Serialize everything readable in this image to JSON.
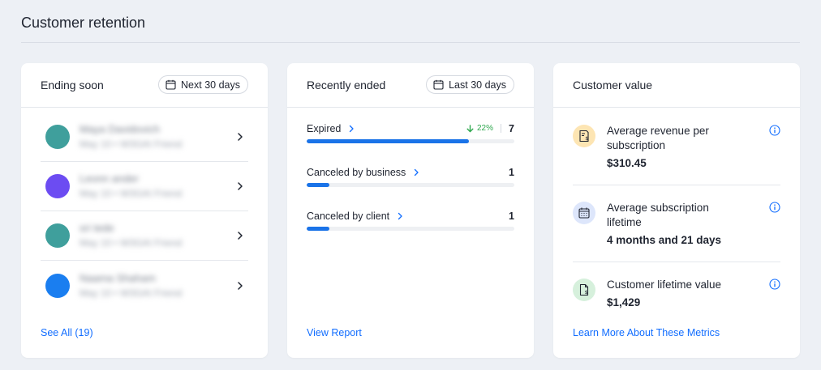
{
  "page": {
    "title": "Customer retention"
  },
  "ending_soon": {
    "title": "Ending soon",
    "date_range": "Next 30 days",
    "items": [
      {
        "name": "Maya Davidovich",
        "detail": "May 10 • W3GAI Friend",
        "avatar_color": "#3f9f9c"
      },
      {
        "name": "Leonn ander",
        "detail": "May 10 • W3GAI Friend",
        "avatar_color": "#6c4cf2"
      },
      {
        "name": "sri tede",
        "detail": "May 10 • W3GAI Friend",
        "avatar_color": "#3f9f9c"
      },
      {
        "name": "Naama Shaham",
        "detail": "May 10 • W3GAI Friend",
        "avatar_color": "#1a7ef0"
      }
    ],
    "link": "See All (19)"
  },
  "recently_ended": {
    "title": "Recently ended",
    "date_range": "Last 30 days",
    "metrics": [
      {
        "label": "Expired",
        "count": "7",
        "change": "22%",
        "progress": 0.78
      },
      {
        "label": "Canceled by business",
        "count": "1",
        "change": "",
        "progress": 0.11
      },
      {
        "label": "Canceled by client",
        "count": "1",
        "change": "",
        "progress": 0.11
      }
    ],
    "link": "View Report"
  },
  "customer_value": {
    "title": "Customer value",
    "items": [
      {
        "label": "Average revenue per subscription",
        "value": "$310.45",
        "icon": "receipt-dollar-icon",
        "icon_bg": "#fde5b3"
      },
      {
        "label": "Average subscription lifetime",
        "value": "4 months and 21 days",
        "icon": "calendar-icon",
        "icon_bg": "#dde6fb"
      },
      {
        "label": "Customer lifetime value",
        "value": "$1,429",
        "icon": "document-dollar-icon",
        "icon_bg": "#d6f0dc"
      }
    ],
    "link": "Learn More About These Metrics"
  },
  "colors": {
    "accent": "#116dff",
    "bar": "#1a73e8",
    "positive": "#2fa84f"
  }
}
